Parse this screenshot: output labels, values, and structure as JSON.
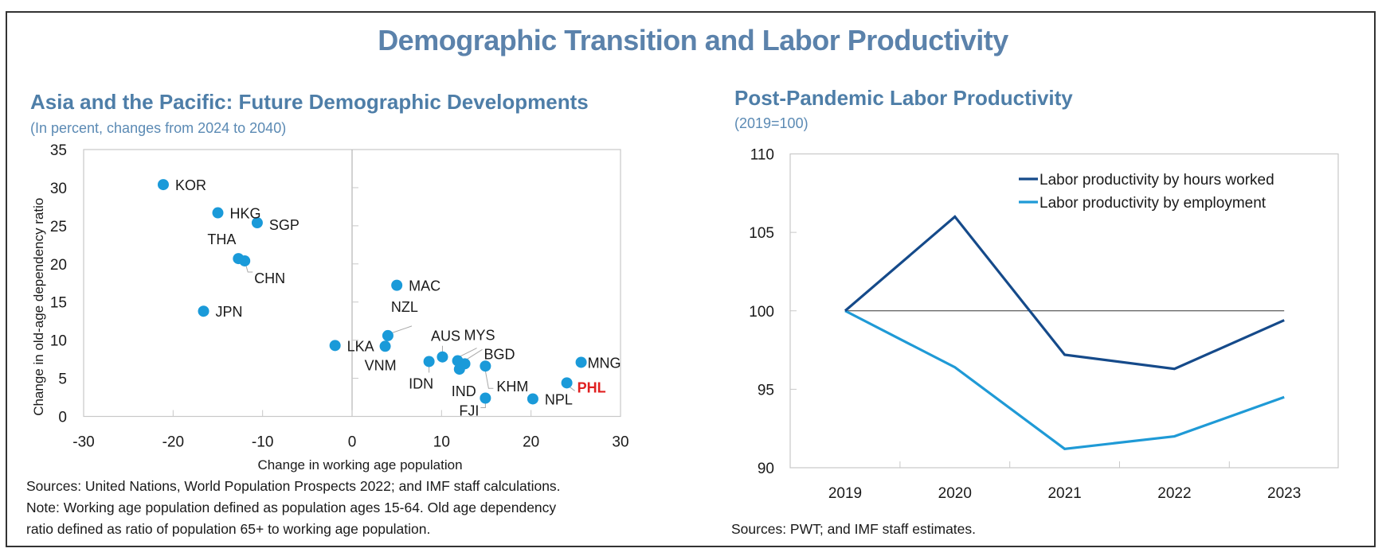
{
  "page": {
    "title": "Demographic Transition and Labor Productivity"
  },
  "left_panel": {
    "title": "Asia and the Pacific: Future Demographic Developments",
    "subtitle": "(In percent, changes from 2024 to 2040)",
    "notes": [
      "Sources: United Nations, World Population Prospects 2022; and IMF staff calculations.",
      "Note: Working age population defined as population ages 15-64. Old age dependency",
      "ratio defined as ratio of population 65+ to working age population."
    ]
  },
  "right_panel": {
    "title": "Post-Pandemic Labor Productivity",
    "subtitle": "(2019=100)",
    "notes": [
      "Sources: PWT; and IMF staff estimates."
    ]
  },
  "colors": {
    "title": "#5b82ab",
    "point": "#1a9ad9",
    "highlight_label": "#e02020",
    "hours_line": "#154a8a",
    "employment_line": "#1f9ad6"
  },
  "chart_data": [
    {
      "type": "scatter",
      "title": "Asia and the Pacific: Future Demographic Developments",
      "subtitle": "(In percent, changes from 2024 to 2040)",
      "xlabel": "Change in working age population",
      "ylabel": "Change in old-age dependency ratio",
      "xlim": [
        -30,
        30
      ],
      "ylim": [
        0,
        35
      ],
      "xticks": [
        -30,
        -20,
        -10,
        0,
        10,
        20,
        30
      ],
      "yticks": [
        0,
        5,
        10,
        15,
        20,
        25,
        30,
        35
      ],
      "grid": false,
      "highlight": "PHL",
      "points": [
        {
          "label": "KOR",
          "x": -21.1,
          "y": 30.4
        },
        {
          "label": "HKG",
          "x": -15.0,
          "y": 26.7
        },
        {
          "label": "SGP",
          "x": -10.6,
          "y": 25.4
        },
        {
          "label": "THA",
          "x": -12.7,
          "y": 20.7
        },
        {
          "label": "CHN",
          "x": -12.0,
          "y": 20.4
        },
        {
          "label": "JPN",
          "x": -16.6,
          "y": 13.8
        },
        {
          "label": "LKA",
          "x": -1.9,
          "y": 9.3
        },
        {
          "label": "MAC",
          "x": 5.0,
          "y": 17.2
        },
        {
          "label": "NZL",
          "x": 4.0,
          "y": 10.6
        },
        {
          "label": "VNM",
          "x": 3.7,
          "y": 9.2
        },
        {
          "label": "IDN",
          "x": 8.6,
          "y": 7.2
        },
        {
          "label": "AUS",
          "x": 10.1,
          "y": 7.8
        },
        {
          "label": "MYS",
          "x": 11.8,
          "y": 7.3
        },
        {
          "label": "BGD",
          "x": 12.6,
          "y": 6.9
        },
        {
          "label": "IND",
          "x": 12.0,
          "y": 6.2
        },
        {
          "label": "KHM",
          "x": 14.9,
          "y": 6.6
        },
        {
          "label": "FJI",
          "x": 14.9,
          "y": 2.4
        },
        {
          "label": "NPL",
          "x": 20.2,
          "y": 2.3
        },
        {
          "label": "PHL",
          "x": 24.0,
          "y": 4.4
        },
        {
          "label": "MNG",
          "x": 25.6,
          "y": 7.1
        }
      ]
    },
    {
      "type": "line",
      "title": "Post-Pandemic Labor Productivity",
      "subtitle": "(2019=100)",
      "xlabel": "",
      "ylabel": "",
      "categories": [
        "2019",
        "2020",
        "2021",
        "2022",
        "2023"
      ],
      "ylim": [
        90,
        110
      ],
      "yticks": [
        90,
        95,
        100,
        105,
        110
      ],
      "reference_line": 100,
      "grid": false,
      "legend_position": "top-right",
      "series": [
        {
          "name": "Labor productivity by hours worked",
          "values": [
            100,
            106.0,
            97.2,
            96.3,
            99.4
          ]
        },
        {
          "name": "Labor productivity by employment",
          "values": [
            100,
            96.4,
            91.2,
            92.0,
            94.5
          ]
        }
      ]
    }
  ]
}
